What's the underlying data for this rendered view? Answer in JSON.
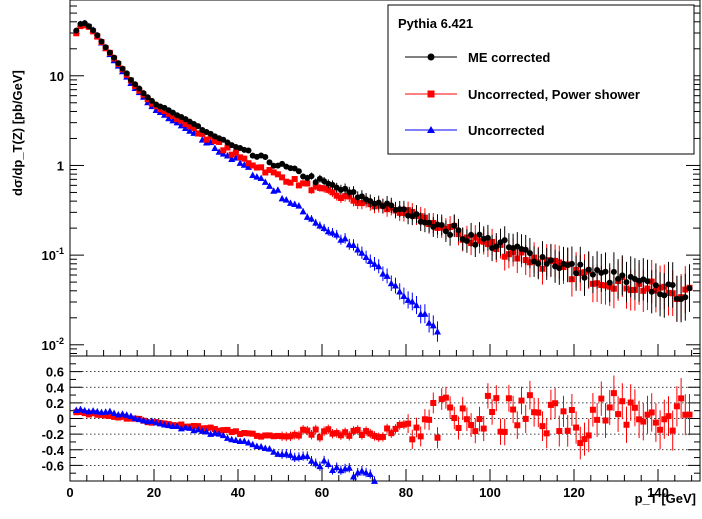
{
  "chart_data": [
    {
      "type": "scatter",
      "panel": "top",
      "title": "",
      "legend_title": "Pythia 6.421",
      "legend_placement": "top-right",
      "ylabel": "dσ/dp_T(Z) [pb/GeV]",
      "y_scale": "log",
      "xlim": [
        0,
        150
      ],
      "ylim": [
        0.0075,
        70
      ],
      "y_ticks": [
        {
          "value": 0.01,
          "label": "10",
          "exp": "-2"
        },
        {
          "value": 0.1,
          "label": "10",
          "exp": "-1"
        },
        {
          "value": 1,
          "label": "1",
          "exp": ""
        },
        {
          "value": 10,
          "label": "10",
          "exp": ""
        }
      ],
      "series": [
        {
          "name": "ME corrected",
          "color": "#000000",
          "marker": "circle",
          "x": [
            1,
            3,
            5,
            10,
            15,
            20,
            30,
            40,
            50,
            60,
            70,
            80,
            90,
            100,
            110,
            120,
            130,
            140,
            148
          ],
          "y": [
            30,
            40,
            35,
            17,
            8.5,
            5.0,
            2.8,
            1.5,
            1.0,
            0.65,
            0.43,
            0.3,
            0.19,
            0.14,
            0.1,
            0.07,
            0.055,
            0.042,
            0.036
          ]
        },
        {
          "name": "Uncorrected, Power shower",
          "color": "#ff0000",
          "marker": "square",
          "x": [
            1,
            3,
            5,
            10,
            15,
            20,
            30,
            40,
            50,
            60,
            70,
            80,
            90,
            100,
            110,
            120,
            130,
            140,
            148
          ],
          "y": [
            28,
            38,
            34,
            16.5,
            8.2,
            4.7,
            2.5,
            1.25,
            0.75,
            0.52,
            0.38,
            0.3,
            0.19,
            0.13,
            0.09,
            0.063,
            0.05,
            0.041,
            0.036
          ]
        },
        {
          "name": "Uncorrected",
          "color": "#0000ff",
          "marker": "triangle",
          "x": [
            1,
            3,
            5,
            10,
            15,
            20,
            30,
            40,
            45,
            50,
            55,
            60,
            65,
            70,
            75,
            80,
            85,
            88
          ],
          "y": [
            30,
            40,
            35,
            16,
            7.8,
            4.3,
            2.2,
            1.1,
            0.75,
            0.48,
            0.32,
            0.21,
            0.15,
            0.1,
            0.06,
            0.034,
            0.02,
            0.014
          ]
        }
      ]
    },
    {
      "type": "scatter",
      "panel": "bottom",
      "title": "",
      "xlabel": "p_T [GeV]",
      "xlim": [
        0,
        150
      ],
      "ylim": [
        -0.8,
        0.8
      ],
      "x_ticks": [
        0,
        20,
        40,
        60,
        80,
        100,
        120,
        140
      ],
      "y_ticks": [
        -0.6,
        -0.4,
        -0.2,
        0,
        0.2,
        0.4,
        0.6
      ],
      "y_tick_labels": [
        "-0.6",
        "-0.4",
        "-0.2",
        "0",
        "0.2",
        "0.4",
        "0.6"
      ],
      "grid_y": true,
      "series": [
        {
          "name": "Uncorrected, Power shower",
          "color": "#ff0000",
          "marker": "square",
          "x": [
            1,
            5,
            10,
            15,
            20,
            25,
            30,
            35,
            40,
            45,
            50,
            55,
            60,
            65,
            70,
            75,
            80,
            85,
            90,
            95,
            100,
            105,
            110,
            115,
            120,
            125,
            130,
            135,
            140,
            145,
            148
          ],
          "y": [
            0.1,
            0.06,
            0.03,
            0.0,
            -0.05,
            -0.08,
            -0.1,
            -0.14,
            -0.18,
            -0.22,
            -0.24,
            -0.2,
            -0.18,
            -0.22,
            -0.2,
            -0.18,
            -0.05,
            -0.05,
            0.0,
            -0.1,
            0.05,
            0.0,
            0.1,
            0.0,
            -0.1,
            0.1,
            0.05,
            0.15,
            -0.05,
            0.1,
            0.0
          ]
        },
        {
          "name": "Uncorrected",
          "color": "#0000ff",
          "marker": "triangle",
          "x": [
            1,
            5,
            10,
            15,
            20,
            25,
            30,
            35,
            40,
            45,
            50,
            55,
            60,
            65,
            70,
            74
          ],
          "y": [
            0.12,
            0.1,
            0.08,
            0.02,
            -0.05,
            -0.1,
            -0.14,
            -0.2,
            -0.28,
            -0.35,
            -0.45,
            -0.5,
            -0.58,
            -0.65,
            -0.72,
            -0.78
          ]
        }
      ]
    }
  ]
}
